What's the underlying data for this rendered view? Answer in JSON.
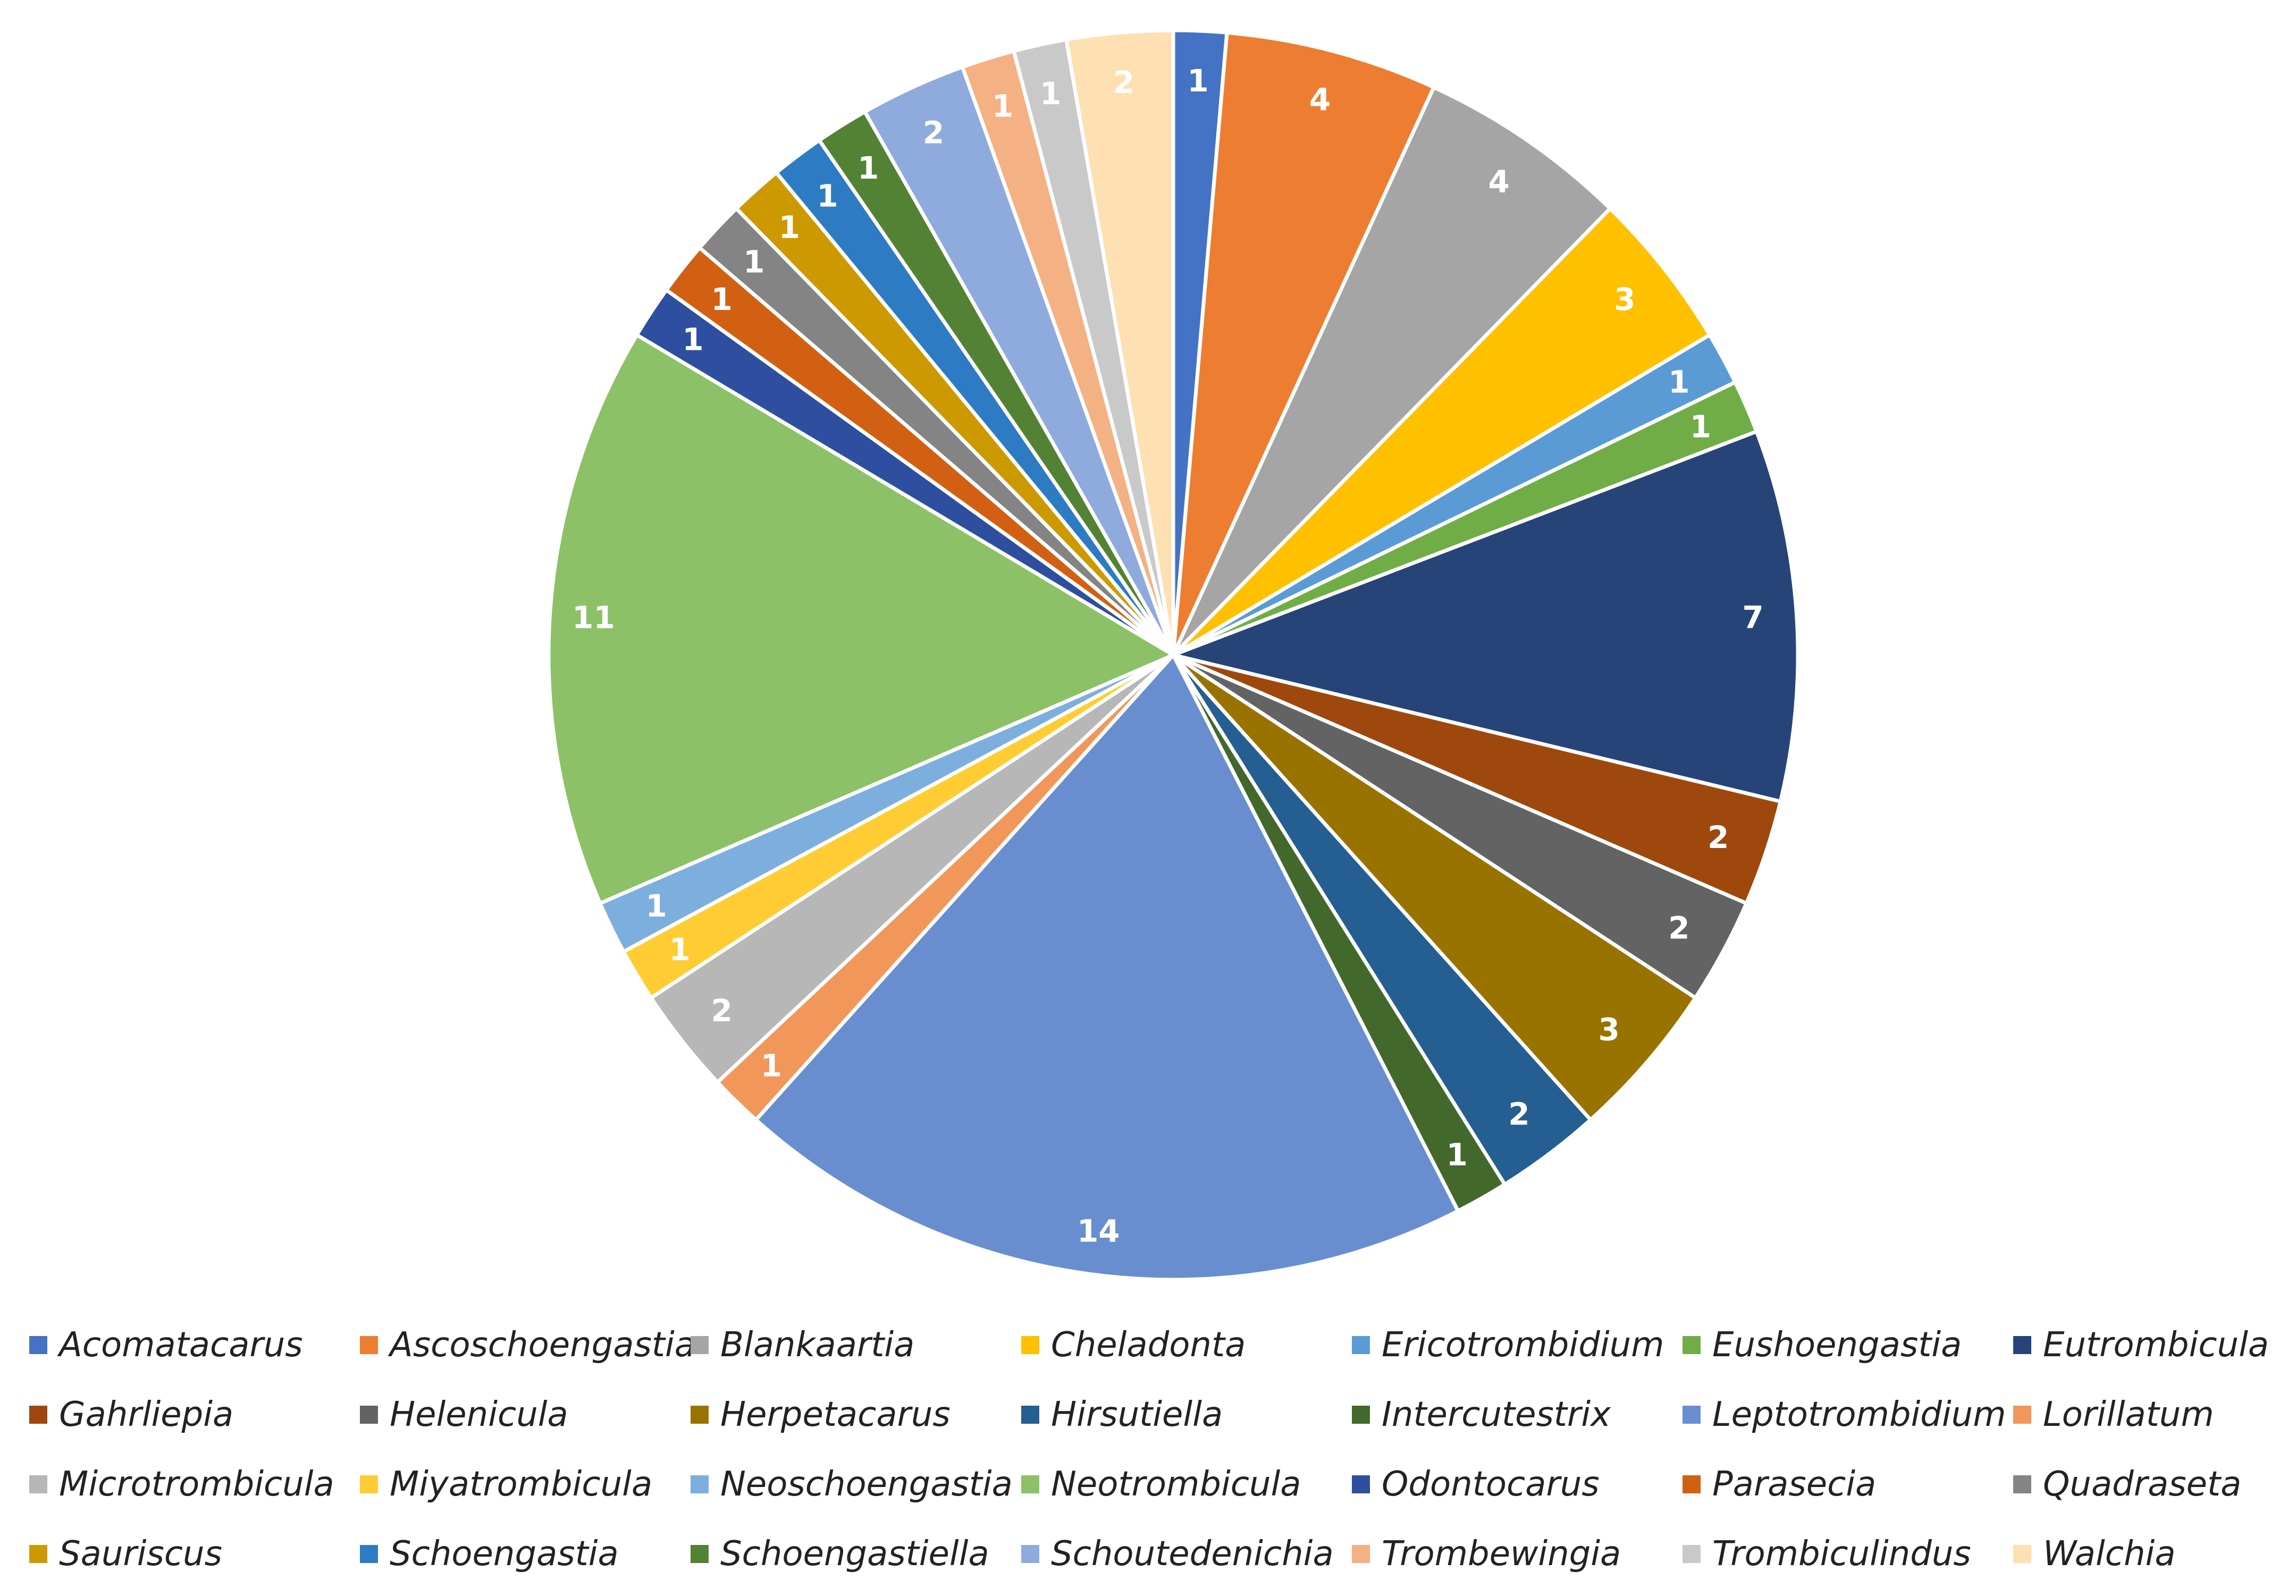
{
  "chart_data": {
    "type": "pie",
    "title": "",
    "start_angle_deg": 0,
    "direction": "clockwise",
    "categories": [
      "Acomatacarus",
      "Ascoschoengastia",
      "Blankaartia",
      "Cheladonta",
      "Ericotrombidium",
      "Eushoengastia",
      "Eutrombicula",
      "Gahrliepia",
      "Helenicula",
      "Herpetacarus",
      "Hirsutiella",
      "Intercutestrix",
      "Leptotrombidium",
      "Lorillatum",
      "Microtrombicula",
      "Miyatrombicula",
      "Neoschoengastia",
      "Neotrombicula",
      "Odontocarus",
      "Parasecia",
      "Quadraseta",
      "Sauriscus",
      "Schoengastia",
      "Schoengastiella",
      "Schoutedenichia",
      "Trombewingia",
      "Trombiculindus",
      "Walchia"
    ],
    "values": [
      1,
      4,
      4,
      3,
      1,
      1,
      7,
      2,
      2,
      3,
      2,
      1,
      14,
      1,
      2,
      1,
      1,
      11,
      1,
      1,
      1,
      1,
      1,
      1,
      2,
      1,
      1,
      2
    ],
    "value_labels": [
      "1",
      "4",
      "4",
      "3",
      "1",
      "1",
      "7",
      "2",
      "2",
      "3",
      "2",
      "1",
      "14",
      "1",
      "2",
      "1",
      "1",
      "11",
      "1",
      "1",
      "1",
      "1",
      "1",
      "1",
      "2",
      "1",
      "1",
      "2"
    ],
    "colors": [
      "#4472C4",
      "#ED7D31",
      "#A5A5A5",
      "#FFC000",
      "#5B9BD5",
      "#70AD47",
      "#264478",
      "#9E480E",
      "#636363",
      "#997300",
      "#255E91",
      "#43682B",
      "#698ED0",
      "#F1975A",
      "#B7B7B7",
      "#FFCD33",
      "#7CAFDD",
      "#8CC168",
      "#2E4F9F",
      "#D26012",
      "#848484",
      "#CC9A00",
      "#2D7CC3",
      "#548235",
      "#8FAADC",
      "#F4B183",
      "#C9C9C9",
      "#FFE0B3"
    ],
    "legend_position": "bottom",
    "legend_columns": 7
  }
}
